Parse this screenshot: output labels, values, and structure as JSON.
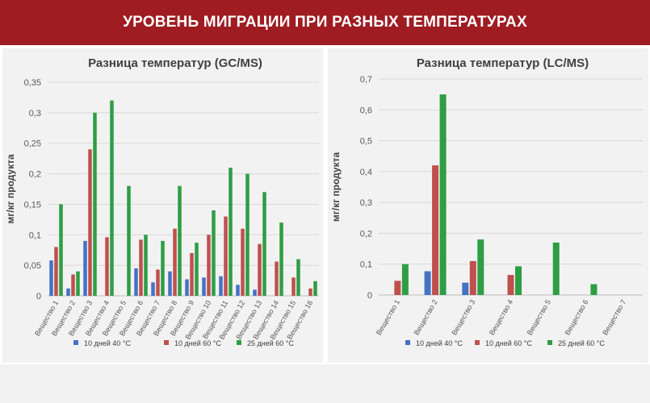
{
  "header": {
    "title": "УРОВЕНЬ МИГРАЦИИ ПРИ РАЗНЫХ ТЕМПЕРАТУРАХ"
  },
  "colors": {
    "header_bg": "#9e1c22",
    "series": [
      "#4472c4",
      "#c0504d",
      "#2e9e44"
    ]
  },
  "chart_data": [
    {
      "type": "bar",
      "title": "Разница температур (GC/MS)",
      "ylabel": "мг/кг продукта",
      "xlabel": "",
      "ylim": [
        0,
        0.35
      ],
      "yticks": [
        "0",
        "0,05",
        "0,1",
        "0,15",
        "0,2",
        "0,25",
        "0,3",
        "0,35"
      ],
      "grid": true,
      "legend": "bottom",
      "categories": [
        "Вещество 1",
        "Вещество 2",
        "Вещество 3",
        "Вещество 4",
        "Вещество 5",
        "Вещество 6",
        "Вещество 7",
        "Вещество 8",
        "Вещество 9",
        "Вещество 10",
        "Вещество 11",
        "Вещество 12",
        "Вещество 13",
        "Вещество 14",
        "Вещество 15",
        "Вещество 16"
      ],
      "series": [
        {
          "name": "10 дней 40 °C",
          "values": [
            0.058,
            0.012,
            0.09,
            0,
            0,
            0.045,
            0.022,
            0.04,
            0.027,
            0.03,
            0.032,
            0.018,
            0.01,
            0,
            0,
            0
          ]
        },
        {
          "name": "10 дней 60 °C",
          "values": [
            0.08,
            0.035,
            0.24,
            0.096,
            0,
            0.092,
            0.043,
            0.11,
            0.07,
            0.1,
            0.13,
            0.11,
            0.085,
            0.056,
            0.03,
            0.012
          ]
        },
        {
          "name": "25 дней 60 °C",
          "values": [
            0.15,
            0.04,
            0.3,
            0.32,
            0.18,
            0.1,
            0.09,
            0.18,
            0.087,
            0.14,
            0.21,
            0.2,
            0.17,
            0.12,
            0.06,
            0.024
          ]
        }
      ]
    },
    {
      "type": "bar",
      "title": "Разница температур (LC/MS)",
      "ylabel": "мг/кг продукта",
      "xlabel": "",
      "ylim": [
        0,
        0.7
      ],
      "yticks": [
        "0",
        "0,1",
        "0,2",
        "0,3",
        "0,4",
        "0,5",
        "0,6",
        "0,7"
      ],
      "grid": true,
      "legend": "bottom",
      "categories": [
        "Вещество 1",
        "Вещество 2",
        "Вещество 3",
        "Вещество 4",
        "Вещество 5",
        "Вещество 6",
        "Вещество 7"
      ],
      "series": [
        {
          "name": "10 дней 40 °C",
          "values": [
            0,
            0.077,
            0.04,
            0,
            0,
            0,
            0
          ]
        },
        {
          "name": "10 дней 60 °C",
          "values": [
            0.046,
            0.42,
            0.11,
            0.065,
            0,
            0,
            0
          ]
        },
        {
          "name": "25 дней 60 °C",
          "values": [
            0.1,
            0.65,
            0.18,
            0.093,
            0.17,
            0.035,
            0
          ]
        }
      ]
    }
  ]
}
